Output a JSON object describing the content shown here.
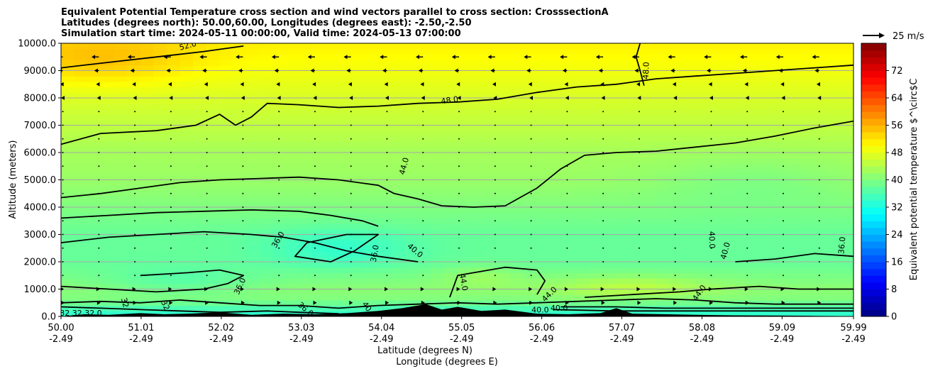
{
  "chart_data": {
    "type": "heatmap",
    "title_lines": [
      "Equivalent Potential Temperature cross section and wind vectors parallel to cross section: CrosssectionA",
      "Latitudes (degrees north): 50.00,60.00, Longitudes (degrees east): -2.50,-2.50",
      "Simulation start time: 2024-05-11 00:00:00, Valid time: 2024-05-13 07:00:00"
    ],
    "ylabel": "Altitude (meters)",
    "xlabel_lat": "Latitude (degrees N)",
    "xlabel_lon": "Longitude (degrees E)",
    "ylim": [
      0,
      10000
    ],
    "y_ticks": [
      0,
      1000,
      2000,
      3000,
      4000,
      5000,
      6000,
      7000,
      8000,
      9000,
      10000
    ],
    "y_tick_labels": [
      "0.0",
      "1000.0",
      "2000.0",
      "3000.0",
      "4000.0",
      "5000.0",
      "6000.0",
      "7000.0",
      "8000.0",
      "9000.0",
      "10000.0"
    ],
    "xlim": [
      50.0,
      59.99
    ],
    "x_ticks": [
      50.0,
      51.01,
      52.02,
      53.03,
      54.04,
      55.05,
      56.06,
      57.07,
      58.08,
      59.09,
      59.99
    ],
    "x_tick_lat_labels": [
      "50.00",
      "51.01",
      "52.02",
      "53.03",
      "54.04",
      "55.05",
      "56.06",
      "57.07",
      "58.08",
      "59.09",
      "59.99"
    ],
    "x_tick_lon_labels": [
      "-2.49",
      "-2.49",
      "-2.49",
      "-2.49",
      "-2.49",
      "-2.49",
      "-2.49",
      "-2.49",
      "-2.49",
      "-2.49",
      "-2.49"
    ],
    "grid": "horizontal",
    "colormap": "jet",
    "colorbar": {
      "label": "Equivalent potential temperature $^\\circ$C",
      "range": [
        0,
        80
      ],
      "ticks": [
        0,
        8,
        16,
        24,
        32,
        40,
        48,
        56,
        64,
        72
      ],
      "tick_labels": [
        "0",
        "8",
        "16",
        "24",
        "32",
        "40",
        "48",
        "56",
        "64",
        "72"
      ]
    },
    "quiver_key": {
      "label": "25 m/s",
      "speed": 25
    },
    "contour_levels": [
      32.0,
      36.0,
      40.0,
      44.0,
      48.0,
      52.0
    ],
    "field_profile": {
      "altitudes": [
        0,
        300,
        600,
        1000,
        2000,
        3000,
        4000,
        5000,
        6000,
        7000,
        8000,
        9000,
        10000
      ],
      "theta_e": [
        33,
        36,
        40,
        41,
        38,
        38,
        40,
        42,
        43,
        45,
        47,
        49,
        51
      ]
    },
    "contour_labels": [
      {
        "text": "52.0",
        "lat": 51.6,
        "alt": 9900,
        "rot": -15
      },
      {
        "text": "48.0",
        "lat": 54.9,
        "alt": 7900,
        "rot": -8
      },
      {
        "text": "48.0",
        "lat": 57.38,
        "alt": 9000,
        "rot": -88
      },
      {
        "text": "44.0",
        "lat": 54.33,
        "alt": 5500,
        "rot": -75
      },
      {
        "text": "36.0",
        "lat": 52.74,
        "alt": 2800,
        "rot": -60
      },
      {
        "text": "36.0",
        "lat": 53.96,
        "alt": 2300,
        "rot": -80
      },
      {
        "text": "40.0",
        "lat": 54.46,
        "alt": 2400,
        "rot": 40
      },
      {
        "text": "36.0",
        "lat": 52.26,
        "alt": 1100,
        "rot": -65
      },
      {
        "text": "40.0",
        "lat": 58.38,
        "alt": 2400,
        "rot": -75
      },
      {
        "text": "40.0",
        "lat": 58.2,
        "alt": 2800,
        "rot": 88
      },
      {
        "text": "36.0",
        "lat": 59.85,
        "alt": 2600,
        "rot": -85
      },
      {
        "text": "44.0",
        "lat": 55.07,
        "alt": 1250,
        "rot": 80
      },
      {
        "text": "44.0",
        "lat": 56.16,
        "alt": 800,
        "rot": -45
      },
      {
        "text": "44.0",
        "lat": 58.05,
        "alt": 850,
        "rot": -55
      },
      {
        "text": "40.0",
        "lat": 56.04,
        "alt": 220,
        "rot": 0
      },
      {
        "text": "40.0",
        "lat": 56.28,
        "alt": 280,
        "rot": 0
      },
      {
        "text": "32",
        "lat": 50.8,
        "alt": 500,
        "rot": 75
      },
      {
        "text": "32",
        "lat": 51.31,
        "alt": 400,
        "rot": 65
      },
      {
        "text": "36.0",
        "lat": 53.08,
        "alt": 250,
        "rot": 40
      },
      {
        "text": "40",
        "lat": 53.85,
        "alt": 350,
        "rot": 55
      },
      {
        "text": "32 32 32 0",
        "lat": 50.25,
        "alt": 100,
        "rot": 0
      }
    ],
    "contour_lines": [
      {
        "level": 48,
        "points": [
          [
            50.0,
            9100
          ],
          [
            50.6,
            9300
          ],
          [
            51.2,
            9500
          ],
          [
            51.8,
            9700
          ],
          [
            52.3,
            9900
          ]
        ]
      },
      {
        "level": 48,
        "points": [
          [
            57.3,
            10000
          ],
          [
            57.25,
            9500
          ],
          [
            57.3,
            9000
          ],
          [
            57.35,
            8450
          ]
        ]
      },
      {
        "level": 44,
        "points": [
          [
            50.0,
            6300
          ],
          [
            50.5,
            6700
          ],
          [
            51.2,
            6800
          ],
          [
            51.7,
            7000
          ],
          [
            52.0,
            7400
          ],
          [
            52.2,
            7000
          ],
          [
            52.4,
            7300
          ],
          [
            52.6,
            7800
          ],
          [
            53.0,
            7750
          ],
          [
            53.5,
            7650
          ],
          [
            54.0,
            7700
          ],
          [
            54.5,
            7800
          ],
          [
            55.0,
            7850
          ],
          [
            55.5,
            7950
          ],
          [
            56.0,
            8200
          ],
          [
            56.5,
            8400
          ],
          [
            57.0,
            8500
          ],
          [
            57.5,
            8700
          ],
          [
            58.0,
            8800
          ],
          [
            58.5,
            8900
          ],
          [
            59.0,
            9000
          ],
          [
            59.5,
            9100
          ],
          [
            59.99,
            9200
          ]
        ]
      },
      {
        "level": 44,
        "points": [
          [
            50.0,
            4350
          ],
          [
            50.5,
            4500
          ],
          [
            51.0,
            4700
          ],
          [
            51.5,
            4900
          ],
          [
            52.0,
            5000
          ],
          [
            52.5,
            5050
          ],
          [
            53.0,
            5100
          ],
          [
            53.5,
            5000
          ],
          [
            54.0,
            4800
          ],
          [
            54.2,
            4500
          ],
          [
            54.5,
            4300
          ],
          [
            54.8,
            4050
          ],
          [
            55.2,
            4000
          ],
          [
            55.6,
            4050
          ],
          [
            56.0,
            4700
          ],
          [
            56.3,
            5400
          ],
          [
            56.6,
            5900
          ],
          [
            57.0,
            6000
          ],
          [
            57.5,
            6050
          ],
          [
            58.0,
            6200
          ],
          [
            58.5,
            6350
          ],
          [
            59.0,
            6600
          ],
          [
            59.5,
            6900
          ],
          [
            59.99,
            7150
          ]
        ]
      },
      {
        "level": 40,
        "points": [
          [
            50.0,
            3600
          ],
          [
            50.6,
            3700
          ],
          [
            51.2,
            3800
          ],
          [
            51.8,
            3850
          ],
          [
            52.4,
            3900
          ],
          [
            53.0,
            3850
          ],
          [
            53.4,
            3700
          ],
          [
            53.8,
            3500
          ],
          [
            54.0,
            3300
          ]
        ]
      },
      {
        "level": 40,
        "points": [
          [
            50.0,
            2700
          ],
          [
            50.6,
            2900
          ],
          [
            51.2,
            3000
          ],
          [
            51.8,
            3100
          ],
          [
            52.4,
            3000
          ],
          [
            52.8,
            2900
          ],
          [
            53.2,
            2700
          ],
          [
            53.6,
            2400
          ],
          [
            54.0,
            2200
          ],
          [
            54.5,
            2000
          ]
        ]
      },
      {
        "level": 40,
        "points": [
          [
            58.5,
            2000
          ],
          [
            59.0,
            2100
          ],
          [
            59.5,
            2300
          ],
          [
            59.99,
            2200
          ]
        ]
      },
      {
        "level": 36,
        "points": [
          [
            53.4,
            2000
          ],
          [
            53.7,
            2400
          ],
          [
            54.0,
            3000
          ],
          [
            53.6,
            3000
          ],
          [
            53.1,
            2700
          ],
          [
            52.95,
            2200
          ],
          [
            53.4,
            2000
          ]
        ]
      },
      {
        "level": 36,
        "points": [
          [
            51.0,
            1500
          ],
          [
            51.6,
            1600
          ],
          [
            52.0,
            1700
          ],
          [
            52.3,
            1500
          ],
          [
            52.1,
            1200
          ],
          [
            51.8,
            1000
          ],
          [
            51.2,
            900
          ],
          [
            50.6,
            1000
          ],
          [
            50.0,
            1100
          ]
        ]
      },
      {
        "level": 44,
        "points": [
          [
            54.9,
            700
          ],
          [
            55.0,
            1500
          ],
          [
            55.6,
            1800
          ],
          [
            56.0,
            1700
          ],
          [
            56.1,
            1300
          ],
          [
            56.0,
            800
          ]
        ]
      },
      {
        "level": 44,
        "points": [
          [
            56.6,
            700
          ],
          [
            57.2,
            800
          ],
          [
            57.8,
            900
          ],
          [
            58.2,
            1000
          ],
          [
            58.8,
            1100
          ],
          [
            59.3,
            1000
          ],
          [
            59.99,
            1000
          ]
        ]
      },
      {
        "level": 40,
        "points": [
          [
            50.0,
            500
          ],
          [
            50.5,
            550
          ],
          [
            51.0,
            500
          ],
          [
            51.5,
            600
          ],
          [
            52.0,
            500
          ],
          [
            52.5,
            400
          ],
          [
            53.0,
            400
          ],
          [
            53.5,
            300
          ],
          [
            54.0,
            400
          ],
          [
            54.5,
            450
          ],
          [
            55.0,
            500
          ],
          [
            55.5,
            450
          ],
          [
            56.0,
            500
          ],
          [
            56.5,
            550
          ],
          [
            57.0,
            600
          ],
          [
            57.5,
            650
          ],
          [
            58.0,
            600
          ],
          [
            58.5,
            500
          ],
          [
            59.0,
            450
          ],
          [
            59.99,
            450
          ]
        ]
      },
      {
        "level": 36,
        "points": [
          [
            50.0,
            350
          ],
          [
            50.5,
            300
          ],
          [
            51.0,
            250
          ],
          [
            51.5,
            200
          ],
          [
            52.0,
            150
          ],
          [
            52.6,
            200
          ],
          [
            53.0,
            150
          ],
          [
            53.5,
            100
          ]
        ]
      },
      {
        "level": 36,
        "points": [
          [
            56.3,
            350
          ],
          [
            57.0,
            350
          ],
          [
            57.6,
            300
          ],
          [
            58.2,
            300
          ],
          [
            58.8,
            300
          ],
          [
            59.4,
            300
          ],
          [
            59.99,
            300
          ]
        ]
      },
      {
        "level": 32,
        "points": [
          [
            56.2,
            250
          ],
          [
            57.0,
            200
          ],
          [
            57.6,
            200
          ],
          [
            58.2,
            200
          ],
          [
            58.8,
            200
          ],
          [
            59.4,
            200
          ],
          [
            59.99,
            200
          ]
        ]
      }
    ],
    "terrain": [
      [
        50.0,
        0
      ],
      [
        50.3,
        80
      ],
      [
        50.6,
        60
      ],
      [
        51.0,
        120
      ],
      [
        51.3,
        80
      ],
      [
        51.6,
        100
      ],
      [
        52.0,
        150
      ],
      [
        52.4,
        60
      ],
      [
        52.8,
        100
      ],
      [
        53.2,
        80
      ],
      [
        53.6,
        120
      ],
      [
        54.0,
        200
      ],
      [
        54.3,
        300
      ],
      [
        54.6,
        450
      ],
      [
        54.8,
        250
      ],
      [
        55.0,
        350
      ],
      [
        55.3,
        200
      ],
      [
        55.6,
        250
      ],
      [
        56.0,
        100
      ],
      [
        56.4,
        80
      ],
      [
        56.8,
        120
      ],
      [
        57.0,
        300
      ],
      [
        57.2,
        100
      ],
      [
        57.6,
        80
      ],
      [
        58.0,
        60
      ],
      [
        58.5,
        40
      ],
      [
        59.0,
        30
      ],
      [
        59.5,
        20
      ],
      [
        59.99,
        10
      ]
    ],
    "wind_samples": [
      {
        "alt": 9500,
        "u": -8
      },
      {
        "alt": 9000,
        "u": -5
      },
      {
        "alt": 8500,
        "u": -3
      },
      {
        "alt": 8000,
        "u": -2
      },
      {
        "alt": 7500,
        "u": -1
      },
      {
        "alt": 7000,
        "u": 0
      },
      {
        "alt": 1500,
        "u": 0.6
      },
      {
        "alt": 1000,
        "u": 1.2
      },
      {
        "alt": 500,
        "u": 2
      }
    ]
  }
}
